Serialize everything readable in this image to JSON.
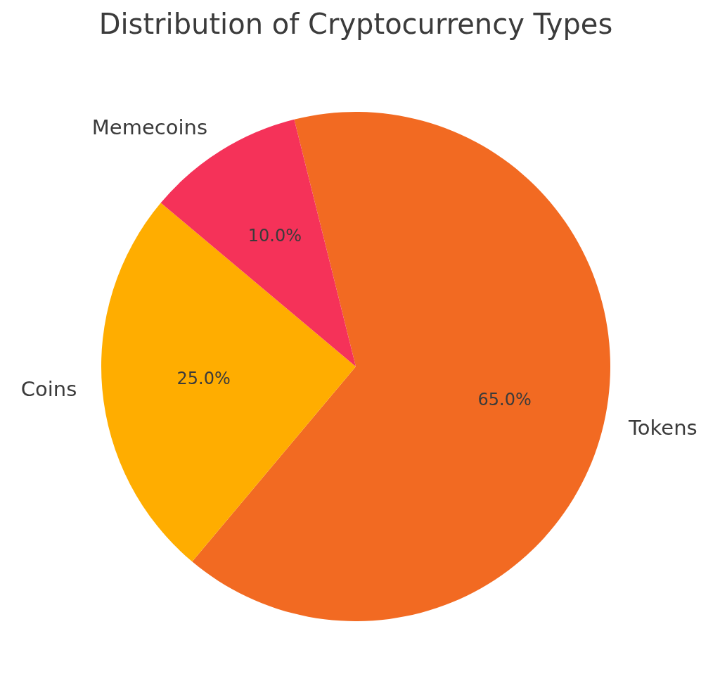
{
  "chart_data": {
    "type": "pie",
    "title": "Distribution of Cryptocurrency Types",
    "categories": [
      "Tokens",
      "Coins",
      "Memecoins"
    ],
    "values": [
      65,
      25,
      10
    ],
    "colors": [
      "#f26a22",
      "#ffad00",
      "#f53259"
    ],
    "value_labels": [
      "65.0%",
      "25.0%",
      "10.0%"
    ],
    "legend": false
  }
}
